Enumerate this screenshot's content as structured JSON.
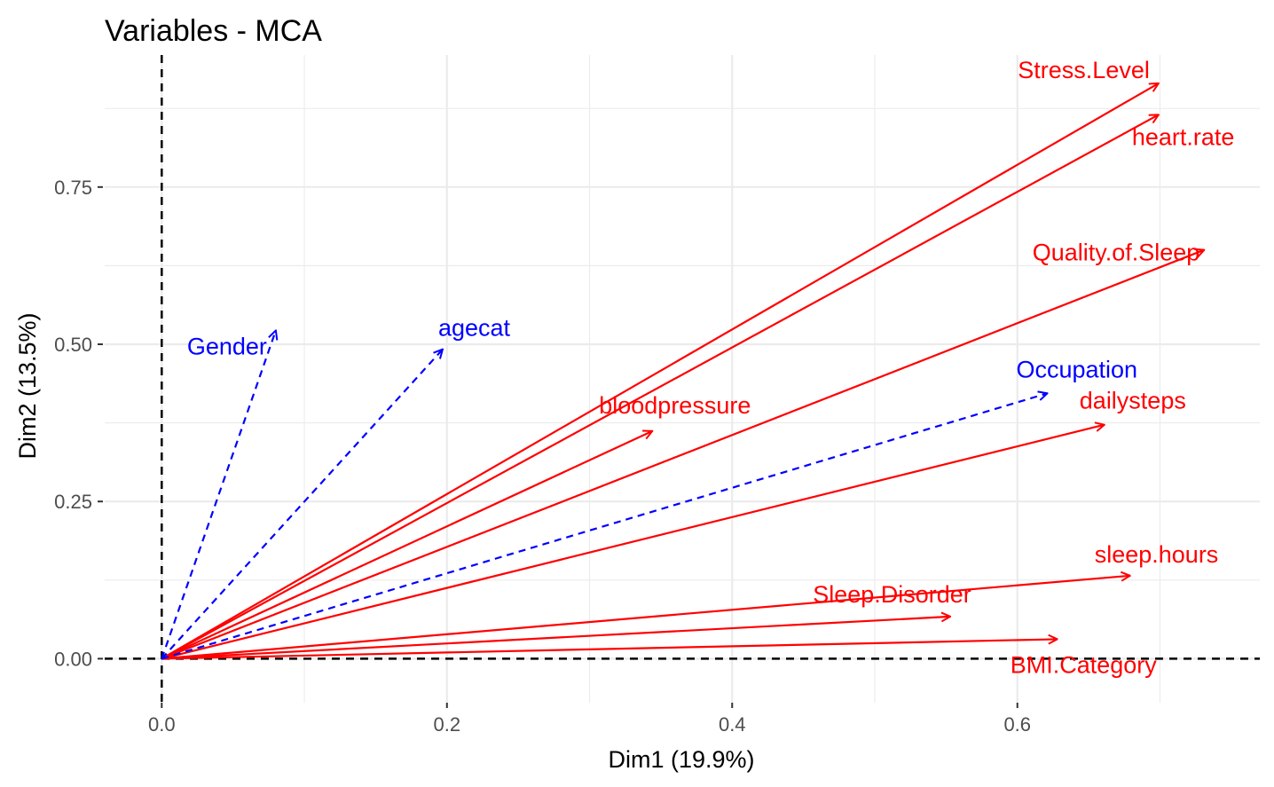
{
  "chart_data": {
    "type": "scatter",
    "subtype": "mca-variable-arrows",
    "title": "Variables - MCA",
    "xlabel": "Dim1 (19.9%)",
    "ylabel": "Dim2 (13.5%)",
    "xlim": [
      -0.04,
      0.77
    ],
    "ylim": [
      -0.07,
      0.96
    ],
    "xticks": [
      0.0,
      0.2,
      0.4,
      0.6
    ],
    "xtick_labels": [
      "0.0",
      "0.2",
      "0.4",
      "0.6"
    ],
    "yticks": [
      0.0,
      0.25,
      0.5,
      0.75
    ],
    "ytick_labels": [
      "0.00",
      "0.25",
      "0.50",
      "0.75"
    ],
    "grid": true,
    "reference_lines": {
      "x": 0,
      "y": 0,
      "style": "dashed"
    },
    "colors": {
      "active": "#ff0000",
      "supplementary": "#0000ff",
      "grid": "#ebebeb",
      "reference": "#000000"
    },
    "series": [
      {
        "group": "active",
        "line_style": "solid",
        "points": [
          {
            "name": "Stress.Level",
            "x": 0.699,
            "y": 0.915
          },
          {
            "name": "heart.rate",
            "x": 0.699,
            "y": 0.865
          },
          {
            "name": "Quality.of.Sleep",
            "x": 0.731,
            "y": 0.65
          },
          {
            "name": "bloodpressure",
            "x": 0.344,
            "y": 0.362
          },
          {
            "name": "dailysteps",
            "x": 0.661,
            "y": 0.372
          },
          {
            "name": "sleep.hours",
            "x": 0.679,
            "y": 0.132
          },
          {
            "name": "Sleep.Disorder",
            "x": 0.553,
            "y": 0.067
          },
          {
            "name": "BMI.Category",
            "x": 0.628,
            "y": 0.031
          }
        ]
      },
      {
        "group": "supplementary",
        "line_style": "dashed",
        "points": [
          {
            "name": "Gender",
            "x": 0.08,
            "y": 0.522
          },
          {
            "name": "agecat",
            "x": 0.197,
            "y": 0.492
          },
          {
            "name": "Occupation",
            "x": 0.621,
            "y": 0.422
          }
        ]
      }
    ]
  }
}
